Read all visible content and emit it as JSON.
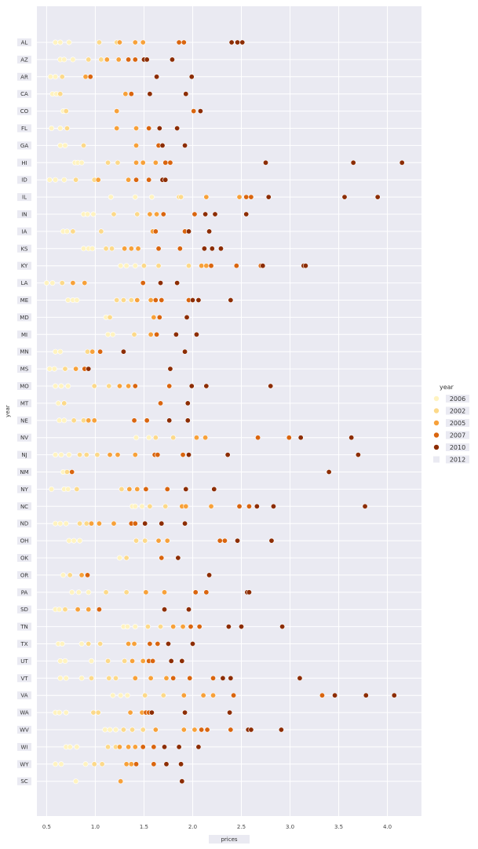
{
  "chart_data": {
    "type": "scatter",
    "xlabel": "prices",
    "ylabel": "year",
    "xlim": [
      0.4,
      4.35
    ],
    "xticks": [
      0.5,
      1.0,
      1.5,
      2.0,
      2.5,
      3.0,
      3.5,
      4.0
    ],
    "xtick_labels": [
      "0.5",
      "1.0",
      "1.5",
      "2.0",
      "2.5",
      "3.0",
      "3.5",
      "4.0"
    ],
    "grid": true,
    "legend_position": "right",
    "legend_title": "year",
    "legend": [
      {
        "label": "2006",
        "color": "#fff3c0"
      },
      {
        "label": "2002",
        "color": "#fcd98a"
      },
      {
        "label": "2005",
        "color": "#f7a13a"
      },
      {
        "label": "2007",
        "color": "#d9650f"
      },
      {
        "label": "2010",
        "color": "#8c2d04"
      },
      {
        "label": "2012",
        "color": "#eaeaf2"
      }
    ],
    "states": [
      {
        "label": "AL",
        "values": [
          0.59,
          0.64,
          0.73,
          1.04,
          1.22,
          1.25,
          1.41,
          1.49,
          1.86,
          1.91,
          2.4,
          2.46,
          2.51
        ]
      },
      {
        "label": "AZ",
        "values": [
          0.64,
          0.68,
          0.77,
          0.93,
          1.06,
          1.12,
          1.24,
          1.34,
          1.41,
          1.5,
          1.53,
          1.79
        ]
      },
      {
        "label": "AR",
        "values": [
          0.54,
          0.59,
          0.66,
          0.9,
          0.95,
          1.63,
          1.99
        ]
      },
      {
        "label": "CA",
        "values": [
          0.56,
          0.6,
          0.64,
          1.31,
          1.37,
          1.56,
          1.93
        ]
      },
      {
        "label": "CO",
        "values": [
          0.67,
          0.7,
          1.22,
          2.01,
          2.08
        ]
      },
      {
        "label": "FL",
        "values": [
          0.55,
          0.64,
          0.71,
          1.22,
          1.42,
          1.55,
          1.66,
          1.84
        ]
      },
      {
        "label": "GA",
        "values": [
          0.64,
          0.69,
          0.88,
          1.42,
          1.65,
          1.69,
          1.92
        ]
      },
      {
        "label": "HI",
        "values": [
          0.79,
          0.82,
          0.86,
          1.13,
          1.23,
          1.42,
          1.49,
          1.62,
          1.72,
          1.77,
          2.75,
          3.65,
          4.15
        ]
      },
      {
        "label": "ID",
        "values": [
          0.53,
          0.59,
          0.68,
          0.8,
          0.99,
          1.03,
          1.34,
          1.42,
          1.55,
          1.69,
          1.72
        ]
      },
      {
        "label": "IL",
        "values": [
          1.16,
          1.41,
          1.58,
          1.86,
          1.88,
          2.14,
          2.48,
          2.55,
          2.6,
          2.78,
          3.56,
          3.9
        ]
      },
      {
        "label": "IN",
        "values": [
          0.88,
          0.92,
          0.98,
          1.19,
          1.43,
          1.56,
          1.63,
          1.7,
          2.02,
          2.13,
          2.23,
          2.55
        ]
      },
      {
        "label": "IA",
        "values": [
          0.67,
          0.71,
          0.77,
          1.06,
          1.59,
          1.62,
          1.92,
          1.96,
          2.17
        ]
      },
      {
        "label": "KS",
        "values": [
          0.88,
          0.93,
          0.97,
          1.11,
          1.17,
          1.3,
          1.37,
          1.44,
          1.65,
          1.87,
          2.12,
          2.2,
          2.29
        ]
      },
      {
        "label": "KY",
        "values": [
          1.26,
          1.32,
          1.41,
          1.5,
          1.65,
          1.96,
          2.09,
          2.14,
          2.19,
          2.45,
          2.7,
          2.72,
          3.14,
          3.16
        ]
      },
      {
        "label": "LA",
        "values": [
          0.5,
          0.56,
          0.66,
          0.77,
          0.89,
          1.49,
          1.67,
          1.84
        ]
      },
      {
        "label": "ME",
        "values": [
          0.72,
          0.77,
          0.81,
          1.22,
          1.29,
          1.37,
          1.43,
          1.57,
          1.62,
          1.68,
          1.96,
          2.0,
          2.06,
          2.39
        ]
      },
      {
        "label": "MD",
        "values": [
          1.11,
          1.15,
          1.6,
          1.66,
          1.94
        ]
      },
      {
        "label": "MI",
        "values": [
          1.13,
          1.18,
          1.4,
          1.57,
          1.63,
          1.83,
          2.04
        ]
      },
      {
        "label": "MN",
        "values": [
          0.59,
          0.64,
          0.92,
          0.97,
          1.05,
          1.29,
          1.92
        ]
      },
      {
        "label": "MS",
        "values": [
          0.53,
          0.58,
          0.69,
          0.8,
          0.89,
          0.93,
          1.77
        ]
      },
      {
        "label": "MO",
        "values": [
          0.59,
          0.65,
          0.72,
          0.99,
          1.14,
          1.25,
          1.34,
          1.41,
          1.76,
          1.99,
          2.14,
          2.8
        ]
      },
      {
        "label": "MT",
        "values": [
          0.62,
          0.68,
          1.67,
          1.95
        ]
      },
      {
        "label": "NE",
        "values": [
          0.63,
          0.68,
          0.78,
          0.88,
          0.93,
          0.99,
          1.4,
          1.53,
          1.76,
          1.95
        ]
      },
      {
        "label": "NV",
        "values": [
          1.42,
          1.55,
          1.62,
          1.8,
          2.04,
          2.13,
          2.67,
          2.99,
          3.11,
          3.63
        ]
      },
      {
        "label": "NJ",
        "values": [
          0.59,
          0.65,
          0.73,
          0.84,
          0.91,
          1.02,
          1.15,
          1.23,
          1.41,
          1.61,
          1.64,
          1.9,
          1.96,
          2.36,
          3.7
        ]
      },
      {
        "label": "NM",
        "values": [
          0.67,
          0.71,
          0.76,
          3.4
        ]
      },
      {
        "label": "NY",
        "values": [
          0.55,
          0.68,
          0.72,
          0.81,
          1.27,
          1.35,
          1.43,
          1.52,
          1.74,
          1.93,
          2.22
        ]
      },
      {
        "label": "NC",
        "values": [
          1.38,
          1.41,
          1.48,
          1.56,
          1.72,
          1.89,
          1.93,
          2.19,
          2.48,
          2.58,
          2.66,
          2.83,
          3.77
        ]
      },
      {
        "label": "ND",
        "values": [
          0.59,
          0.64,
          0.7,
          0.84,
          0.91,
          0.96,
          1.04,
          1.19,
          1.37,
          1.41,
          1.51,
          1.68,
          1.92
        ]
      },
      {
        "label": "OH",
        "values": [
          0.73,
          0.78,
          0.84,
          1.42,
          1.51,
          1.65,
          1.74,
          2.28,
          2.33,
          2.46,
          2.81
        ]
      },
      {
        "label": "OK",
        "values": [
          1.25,
          1.32,
          1.68,
          1.85
        ]
      },
      {
        "label": "OR",
        "values": [
          0.67,
          0.74,
          0.86,
          0.92,
          2.17
        ]
      },
      {
        "label": "PA",
        "values": [
          0.76,
          0.83,
          0.93,
          1.11,
          1.32,
          1.52,
          1.71,
          2.03,
          2.14,
          2.56,
          2.58
        ]
      },
      {
        "label": "SD",
        "values": [
          0.59,
          0.63,
          0.69,
          0.82,
          0.93,
          1.04,
          1.71,
          1.96
        ]
      },
      {
        "label": "TN",
        "values": [
          1.29,
          1.33,
          1.41,
          1.54,
          1.67,
          1.8,
          1.9,
          1.98,
          2.07,
          2.37,
          2.5,
          2.92
        ]
      },
      {
        "label": "TX",
        "values": [
          0.62,
          0.66,
          0.86,
          0.93,
          1.05,
          1.34,
          1.4,
          1.56,
          1.64,
          1.75,
          2.0
        ]
      },
      {
        "label": "UT",
        "values": [
          0.64,
          0.69,
          0.96,
          1.13,
          1.3,
          1.38,
          1.49,
          1.55,
          1.59,
          1.78,
          1.89
        ]
      },
      {
        "label": "VT",
        "values": [
          0.64,
          0.7,
          0.86,
          0.96,
          1.14,
          1.21,
          1.41,
          1.57,
          1.73,
          1.8,
          1.97,
          2.21,
          2.31,
          2.39,
          3.1
        ]
      },
      {
        "label": "VA",
        "values": [
          1.18,
          1.26,
          1.33,
          1.51,
          1.7,
          1.91,
          2.11,
          2.21,
          2.42,
          3.33,
          3.46,
          3.78,
          4.07
        ]
      },
      {
        "label": "WA",
        "values": [
          0.59,
          0.63,
          0.7,
          0.98,
          1.03,
          1.36,
          1.48,
          1.52,
          1.55,
          1.58,
          1.92,
          2.38
        ]
      },
      {
        "label": "WV",
        "values": [
          1.1,
          1.15,
          1.21,
          1.29,
          1.38,
          1.49,
          1.62,
          1.91,
          2.02,
          2.09,
          2.15,
          2.39,
          2.57,
          2.6,
          2.91
        ]
      },
      {
        "label": "WI",
        "values": [
          0.7,
          0.74,
          0.81,
          1.13,
          1.21,
          1.25,
          1.34,
          1.41,
          1.49,
          1.6,
          1.71,
          1.86,
          2.06
        ]
      },
      {
        "label": "WY",
        "values": [
          0.59,
          0.65,
          0.9,
          0.99,
          1.07,
          1.32,
          1.37,
          1.42,
          1.6,
          1.73,
          1.88
        ]
      },
      {
        "label": "SC",
        "values": [
          0.8,
          1.26,
          1.89
        ]
      }
    ]
  }
}
